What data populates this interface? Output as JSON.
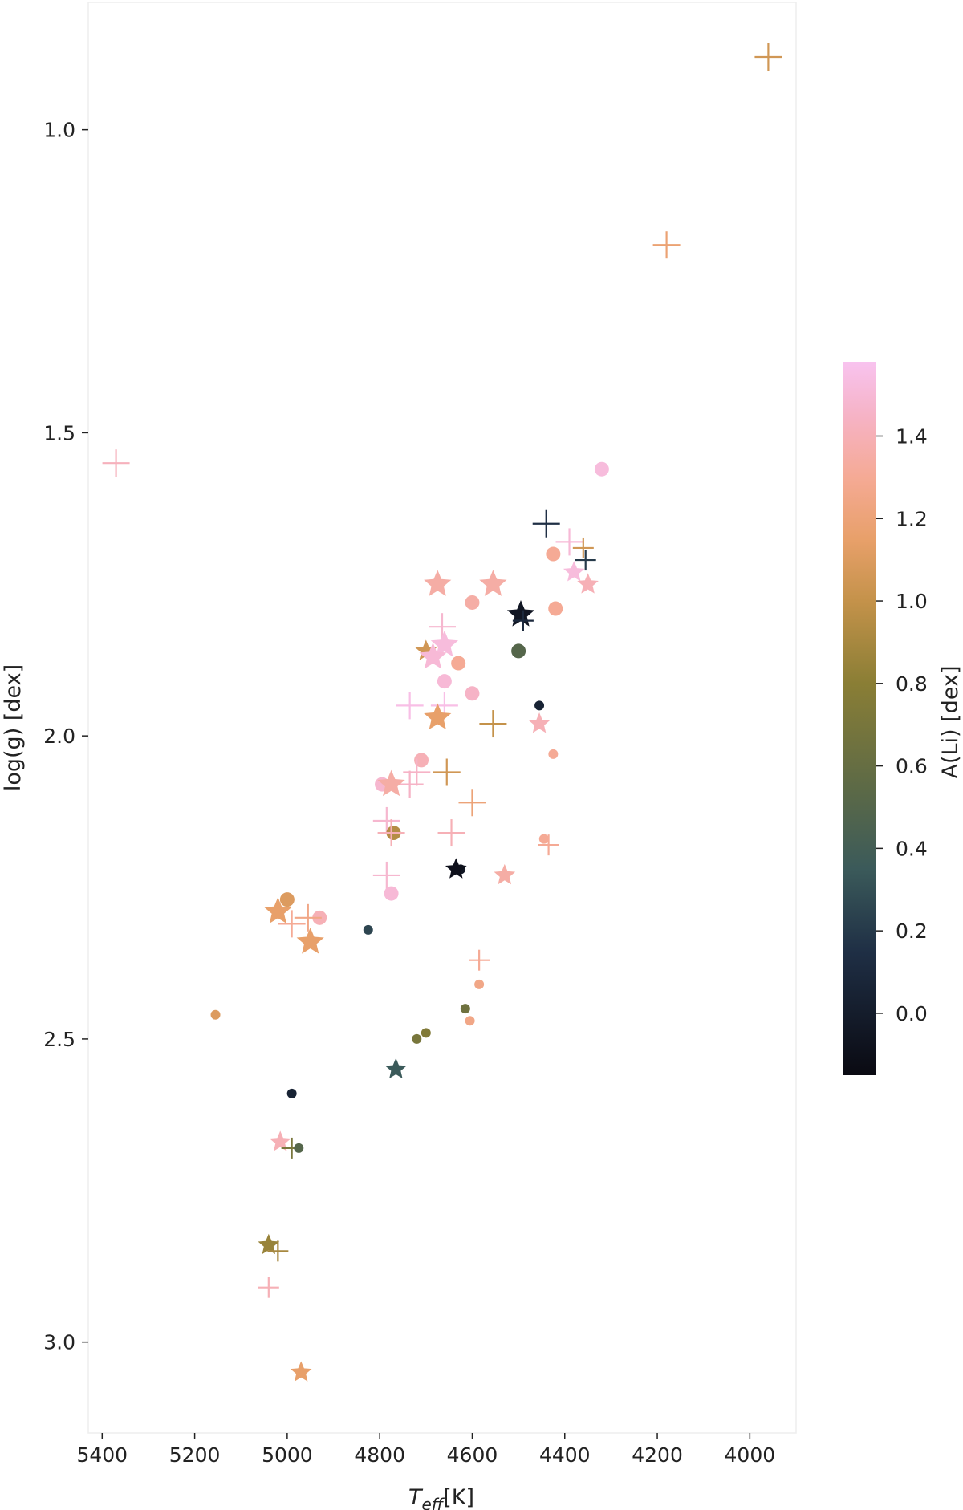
{
  "chart_data": {
    "type": "scatter",
    "title": "",
    "xlabel": {
      "base": "T",
      "subscript": "eff",
      "suffix": "[K]"
    },
    "ylabel": "log(g) [dex]",
    "xlim": [
      5430,
      3900
    ],
    "ylim": [
      3.15,
      0.79
    ],
    "x_inverted": true,
    "y_inverted": true,
    "xticks": [
      5400,
      5200,
      5000,
      4800,
      4600,
      4400,
      4200,
      4000
    ],
    "yticks": [
      1.0,
      1.5,
      2.0,
      2.5,
      3.0
    ],
    "ytick_labels": [
      "1.0",
      "1.5",
      "2.0",
      "2.5",
      "3.0"
    ],
    "grid": false,
    "legend": "none",
    "colorbar": {
      "label": "A(Li) [dex]",
      "range": [
        -0.15,
        1.58
      ],
      "ticks": [
        0.0,
        0.2,
        0.4,
        0.6,
        0.8,
        1.0,
        1.2,
        1.4
      ],
      "tick_labels": [
        "0.0",
        "0.2",
        "0.4",
        "0.6",
        "0.8",
        "1.0",
        "1.2",
        "1.4"
      ],
      "colormap_stops": [
        {
          "v": -0.15,
          "color": "#0a0a12"
        },
        {
          "v": 0.15,
          "color": "#1f2f45"
        },
        {
          "v": 0.35,
          "color": "#3b5a5a"
        },
        {
          "v": 0.55,
          "color": "#5d6a46"
        },
        {
          "v": 0.8,
          "color": "#8a7e35"
        },
        {
          "v": 1.0,
          "color": "#c4924a"
        },
        {
          "v": 1.15,
          "color": "#e8a06a"
        },
        {
          "v": 1.3,
          "color": "#f5aa95"
        },
        {
          "v": 1.45,
          "color": "#f6b3c6"
        },
        {
          "v": 1.58,
          "color": "#f8c3ef"
        }
      ]
    },
    "marker_types": [
      "plus",
      "circle",
      "star"
    ],
    "points": [
      {
        "marker": "plus",
        "teff": 3960,
        "logg": 0.88,
        "ali": 1.05,
        "size": "large"
      },
      {
        "marker": "plus",
        "teff": 4180,
        "logg": 1.19,
        "ali": 1.18,
        "size": "large"
      },
      {
        "marker": "plus",
        "teff": 5370,
        "logg": 1.55,
        "ali": 1.42,
        "size": "large"
      },
      {
        "marker": "circle",
        "teff": 4320,
        "logg": 1.56,
        "ali": 1.52,
        "size": "medium"
      },
      {
        "marker": "plus",
        "teff": 4440,
        "logg": 1.65,
        "ali": 0.15,
        "size": "large"
      },
      {
        "marker": "plus",
        "teff": 4390,
        "logg": 1.68,
        "ali": 1.5,
        "size": "large"
      },
      {
        "marker": "circle",
        "teff": 4425,
        "logg": 1.7,
        "ali": 1.3,
        "size": "medium"
      },
      {
        "marker": "plus",
        "teff": 4360,
        "logg": 1.69,
        "ali": 1.05,
        "size": "medium"
      },
      {
        "marker": "plus",
        "teff": 4355,
        "logg": 1.71,
        "ali": 0.2,
        "size": "medium"
      },
      {
        "marker": "star",
        "teff": 4380,
        "logg": 1.73,
        "ali": 1.52,
        "size": "large"
      },
      {
        "marker": "star",
        "teff": 4350,
        "logg": 1.75,
        "ali": 1.4,
        "size": "large"
      },
      {
        "marker": "star",
        "teff": 4675,
        "logg": 1.75,
        "ali": 1.35,
        "size": "xlarge"
      },
      {
        "marker": "star",
        "teff": 4555,
        "logg": 1.75,
        "ali": 1.35,
        "size": "xlarge"
      },
      {
        "marker": "circle",
        "teff": 4600,
        "logg": 1.78,
        "ali": 1.35,
        "size": "medium"
      },
      {
        "marker": "circle",
        "teff": 4420,
        "logg": 1.79,
        "ali": 1.3,
        "size": "medium"
      },
      {
        "marker": "star",
        "teff": 4495,
        "logg": 1.8,
        "ali": -0.05,
        "size": "xlarge"
      },
      {
        "marker": "plus",
        "teff": 4490,
        "logg": 1.81,
        "ali": 0.1,
        "size": "medium"
      },
      {
        "marker": "plus",
        "teff": 4665,
        "logg": 1.82,
        "ali": 1.48,
        "size": "large"
      },
      {
        "marker": "star",
        "teff": 4660,
        "logg": 1.85,
        "ali": 1.52,
        "size": "xlarge"
      },
      {
        "marker": "star",
        "teff": 4700,
        "logg": 1.86,
        "ali": 1.05,
        "size": "large"
      },
      {
        "marker": "circle",
        "teff": 4500,
        "logg": 1.86,
        "ali": 0.5,
        "size": "medium"
      },
      {
        "marker": "star",
        "teff": 4685,
        "logg": 1.87,
        "ali": 1.5,
        "size": "xlarge"
      },
      {
        "marker": "circle",
        "teff": 4630,
        "logg": 1.88,
        "ali": 1.3,
        "size": "medium"
      },
      {
        "marker": "circle",
        "teff": 4660,
        "logg": 1.91,
        "ali": 1.5,
        "size": "medium"
      },
      {
        "marker": "circle",
        "teff": 4600,
        "logg": 1.93,
        "ali": 1.45,
        "size": "medium"
      },
      {
        "marker": "plus",
        "teff": 4735,
        "logg": 1.95,
        "ali": 1.55,
        "size": "large"
      },
      {
        "marker": "plus",
        "teff": 4660,
        "logg": 1.95,
        "ali": 1.55,
        "size": "large"
      },
      {
        "marker": "circle",
        "teff": 4455,
        "logg": 1.95,
        "ali": 0.05,
        "size": "small"
      },
      {
        "marker": "star",
        "teff": 4675,
        "logg": 1.97,
        "ali": 1.15,
        "size": "xlarge"
      },
      {
        "marker": "star",
        "teff": 4455,
        "logg": 1.98,
        "ali": 1.4,
        "size": "large"
      },
      {
        "marker": "plus",
        "teff": 4555,
        "logg": 1.98,
        "ali": 1.0,
        "size": "large"
      },
      {
        "marker": "circle",
        "teff": 4425,
        "logg": 2.03,
        "ali": 1.3,
        "size": "small"
      },
      {
        "marker": "circle",
        "teff": 4710,
        "logg": 2.04,
        "ali": 1.4,
        "size": "medium"
      },
      {
        "marker": "plus",
        "teff": 4655,
        "logg": 2.06,
        "ali": 1.05,
        "size": "large"
      },
      {
        "marker": "plus",
        "teff": 4720,
        "logg": 2.06,
        "ali": 1.45,
        "size": "large"
      },
      {
        "marker": "plus",
        "teff": 4735,
        "logg": 2.08,
        "ali": 1.45,
        "size": "large"
      },
      {
        "marker": "circle",
        "teff": 4795,
        "logg": 2.08,
        "ali": 1.48,
        "size": "medium"
      },
      {
        "marker": "star",
        "teff": 4775,
        "logg": 2.08,
        "ali": 1.35,
        "size": "xlarge"
      },
      {
        "marker": "plus",
        "teff": 4600,
        "logg": 2.11,
        "ali": 1.2,
        "size": "large"
      },
      {
        "marker": "plus",
        "teff": 4785,
        "logg": 2.14,
        "ali": 1.48,
        "size": "large"
      },
      {
        "marker": "plus",
        "teff": 4645,
        "logg": 2.16,
        "ali": 1.4,
        "size": "large"
      },
      {
        "marker": "circle",
        "teff": 4770,
        "logg": 2.16,
        "ali": 0.95,
        "size": "medium"
      },
      {
        "marker": "plus",
        "teff": 4775,
        "logg": 2.16,
        "ali": 1.4,
        "size": "large"
      },
      {
        "marker": "circle",
        "teff": 4445,
        "logg": 2.17,
        "ali": 1.3,
        "size": "small"
      },
      {
        "marker": "plus",
        "teff": 4435,
        "logg": 2.18,
        "ali": 1.3,
        "size": "medium"
      },
      {
        "marker": "circle",
        "teff": 4625,
        "logg": 2.22,
        "ali": -0.05,
        "size": "small"
      },
      {
        "marker": "star",
        "teff": 4635,
        "logg": 2.22,
        "ali": -0.1,
        "size": "large"
      },
      {
        "marker": "plus",
        "teff": 4785,
        "logg": 2.23,
        "ali": 1.48,
        "size": "large"
      },
      {
        "marker": "star",
        "teff": 4530,
        "logg": 2.23,
        "ali": 1.35,
        "size": "large"
      },
      {
        "marker": "circle",
        "teff": 4775,
        "logg": 2.26,
        "ali": 1.5,
        "size": "medium"
      },
      {
        "marker": "circle",
        "teff": 5000,
        "logg": 2.27,
        "ali": 1.1,
        "size": "medium"
      },
      {
        "marker": "star",
        "teff": 5020,
        "logg": 2.29,
        "ali": 1.15,
        "size": "xlarge"
      },
      {
        "marker": "circle",
        "teff": 4930,
        "logg": 2.3,
        "ali": 1.4,
        "size": "medium"
      },
      {
        "marker": "plus",
        "teff": 4955,
        "logg": 2.3,
        "ali": 1.25,
        "size": "large"
      },
      {
        "marker": "plus",
        "teff": 4990,
        "logg": 2.31,
        "ali": 1.3,
        "size": "large"
      },
      {
        "marker": "circle",
        "teff": 4825,
        "logg": 2.32,
        "ali": 0.25,
        "size": "small"
      },
      {
        "marker": "star",
        "teff": 4950,
        "logg": 2.34,
        "ali": 1.15,
        "size": "xlarge"
      },
      {
        "marker": "plus",
        "teff": 4585,
        "logg": 2.37,
        "ali": 1.3,
        "size": "medium"
      },
      {
        "marker": "circle",
        "teff": 4585,
        "logg": 2.41,
        "ali": 1.25,
        "size": "small"
      },
      {
        "marker": "circle",
        "teff": 5155,
        "logg": 2.46,
        "ali": 1.1,
        "size": "small"
      },
      {
        "marker": "circle",
        "teff": 4615,
        "logg": 2.45,
        "ali": 0.65,
        "size": "small"
      },
      {
        "marker": "circle",
        "teff": 4605,
        "logg": 2.47,
        "ali": 1.25,
        "size": "small"
      },
      {
        "marker": "circle",
        "teff": 4700,
        "logg": 2.49,
        "ali": 0.75,
        "size": "small"
      },
      {
        "marker": "circle",
        "teff": 4720,
        "logg": 2.5,
        "ali": 0.7,
        "size": "small"
      },
      {
        "marker": "star",
        "teff": 4765,
        "logg": 2.55,
        "ali": 0.35,
        "size": "large"
      },
      {
        "marker": "circle",
        "teff": 4990,
        "logg": 2.59,
        "ali": 0.05,
        "size": "small"
      },
      {
        "marker": "star",
        "teff": 5015,
        "logg": 2.67,
        "ali": 1.4,
        "size": "large"
      },
      {
        "marker": "plus",
        "teff": 4990,
        "logg": 2.68,
        "ali": 0.7,
        "size": "medium"
      },
      {
        "marker": "circle",
        "teff": 4975,
        "logg": 2.68,
        "ali": 0.5,
        "size": "small"
      },
      {
        "marker": "star",
        "teff": 5040,
        "logg": 2.84,
        "ali": 0.85,
        "size": "large"
      },
      {
        "marker": "plus",
        "teff": 5020,
        "logg": 2.85,
        "ali": 0.9,
        "size": "medium"
      },
      {
        "marker": "plus",
        "teff": 5040,
        "logg": 2.91,
        "ali": 1.4,
        "size": "medium"
      },
      {
        "marker": "star",
        "teff": 4970,
        "logg": 3.05,
        "ali": 1.15,
        "size": "large"
      }
    ]
  }
}
